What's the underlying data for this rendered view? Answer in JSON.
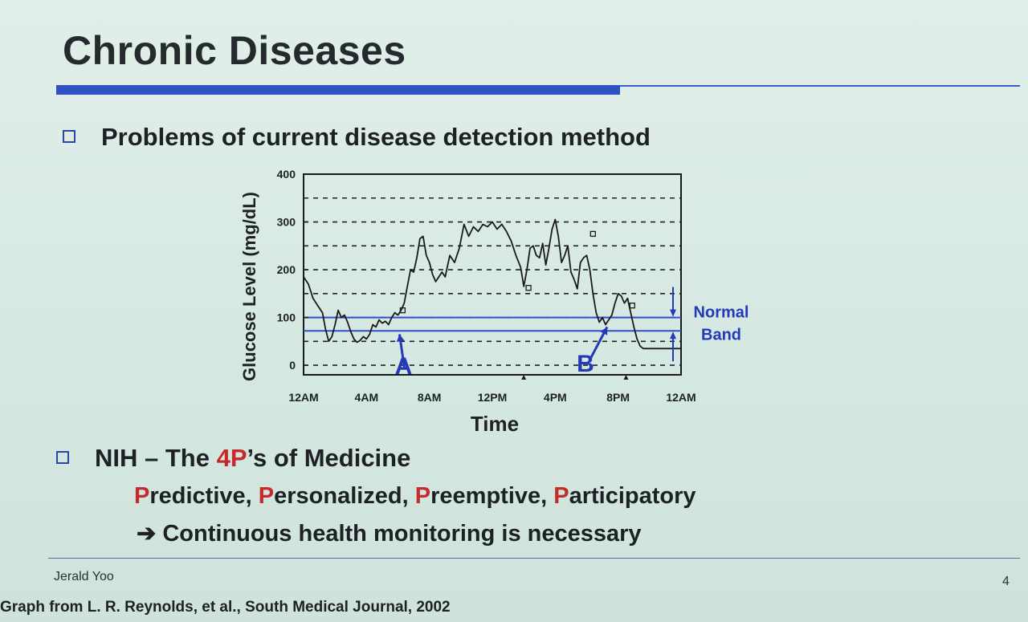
{
  "slide": {
    "title": "Chronic Diseases",
    "bullet1": "Problems of current disease detection method",
    "bullet2": {
      "prefix": "NIH – The ",
      "highlight": "4P",
      "suffix": "’s of Medicine"
    },
    "four_ps": [
      {
        "initial": "P",
        "rest": "redictive,"
      },
      {
        "initial": "P",
        "rest": "ersonalized,"
      },
      {
        "initial": "P",
        "rest": "reemptive,"
      },
      {
        "initial": "P",
        "rest": "articipatory"
      }
    ],
    "conclusion": "➔ Continuous health monitoring is necessary",
    "author": "Jerald Yoo",
    "page_number": "4",
    "source": "Graph from L. R. Reynolds, et al., South Medical Journal, 2002",
    "colors": {
      "accent": "#2e52c6",
      "highlight": "#c62a2a",
      "annotation": "#2438b8"
    }
  },
  "chart_data": {
    "type": "line",
    "xlabel": "Time",
    "ylabel": "Glucose Level (mg/dL)",
    "xlim": [
      0,
      24
    ],
    "ylim": [
      0,
      400
    ],
    "y_axis_min_shown": -20,
    "yticks": [
      0,
      100,
      200,
      300,
      400
    ],
    "xticks": [
      {
        "value": 0,
        "label": "12AM"
      },
      {
        "value": 4,
        "label": "4AM"
      },
      {
        "value": 8,
        "label": "8AM"
      },
      {
        "value": 12,
        "label": "12PM"
      },
      {
        "value": 16,
        "label": "4PM"
      },
      {
        "value": 20,
        "label": "8PM"
      },
      {
        "value": 24,
        "label": "12AM"
      }
    ],
    "grid": "dashed-horizontal",
    "normal_band": {
      "low": 72,
      "high": 100,
      "label_line1": "Normal",
      "label_line2": "Band"
    },
    "annotations": [
      {
        "label": "A",
        "x": 6.1,
        "y": 65
      },
      {
        "label": "B",
        "x": 19.3,
        "y": 80
      }
    ],
    "markers_square": [
      {
        "x": 6.3,
        "y": 115
      },
      {
        "x": 18.4,
        "y": 275
      },
      {
        "x": 20.9,
        "y": 125
      },
      {
        "x": 14.3,
        "y": 162
      }
    ],
    "markers_triangle": [
      {
        "x": 14.0,
        "y": -25
      },
      {
        "x": 20.5,
        "y": -25
      }
    ],
    "series": [
      {
        "x": [
          0,
          0.3,
          0.6,
          0.9,
          1.2,
          1.4,
          1.6,
          1.8,
          2.0,
          2.2,
          2.4,
          2.6,
          2.8,
          3.0,
          3.2,
          3.4,
          3.6,
          3.8,
          4.0,
          4.2,
          4.4,
          4.6,
          4.8,
          5.0,
          5.2,
          5.4,
          5.6,
          5.8,
          6.0,
          6.2,
          6.4,
          6.6,
          6.8,
          7.0,
          7.2,
          7.4,
          7.6,
          7.8,
          8.0,
          8.2,
          8.4,
          8.6,
          8.8,
          9.0,
          9.3,
          9.6,
          9.9,
          10.2,
          10.5,
          10.8,
          11.1,
          11.4,
          11.7,
          12.0,
          12.3,
          12.6,
          12.9,
          13.2,
          13.5,
          13.8,
          14.0,
          14.2,
          14.4,
          14.6,
          14.8,
          15.0,
          15.2,
          15.4,
          15.6,
          15.8,
          16.0,
          16.2,
          16.4,
          16.6,
          16.8,
          17.0,
          17.2,
          17.4,
          17.6,
          17.8,
          18.0,
          18.2,
          18.4,
          18.6,
          18.8,
          19.0,
          19.2,
          19.4,
          19.6,
          19.8,
          20.0,
          20.2,
          20.4,
          20.6,
          20.8,
          21.0,
          21.2,
          21.4,
          21.6,
          21.8,
          22.0,
          22.5,
          23.0,
          23.5,
          24.0
        ],
        "y": [
          185,
          170,
          140,
          125,
          110,
          75,
          50,
          60,
          85,
          115,
          100,
          105,
          90,
          70,
          55,
          48,
          52,
          60,
          55,
          65,
          85,
          80,
          95,
          88,
          92,
          85,
          100,
          110,
          105,
          115,
          130,
          165,
          200,
          195,
          225,
          265,
          270,
          230,
          215,
          190,
          175,
          185,
          195,
          185,
          230,
          215,
          245,
          295,
          270,
          290,
          280,
          295,
          290,
          300,
          285,
          295,
          280,
          260,
          230,
          205,
          165,
          200,
          245,
          250,
          230,
          225,
          255,
          210,
          245,
          285,
          305,
          270,
          215,
          230,
          250,
          195,
          180,
          160,
          215,
          225,
          230,
          200,
          150,
          110,
          90,
          100,
          85,
          95,
          105,
          130,
          150,
          145,
          130,
          140,
          110,
          80,
          55,
          40,
          35,
          35,
          35,
          35,
          35,
          35,
          35
        ]
      }
    ]
  }
}
